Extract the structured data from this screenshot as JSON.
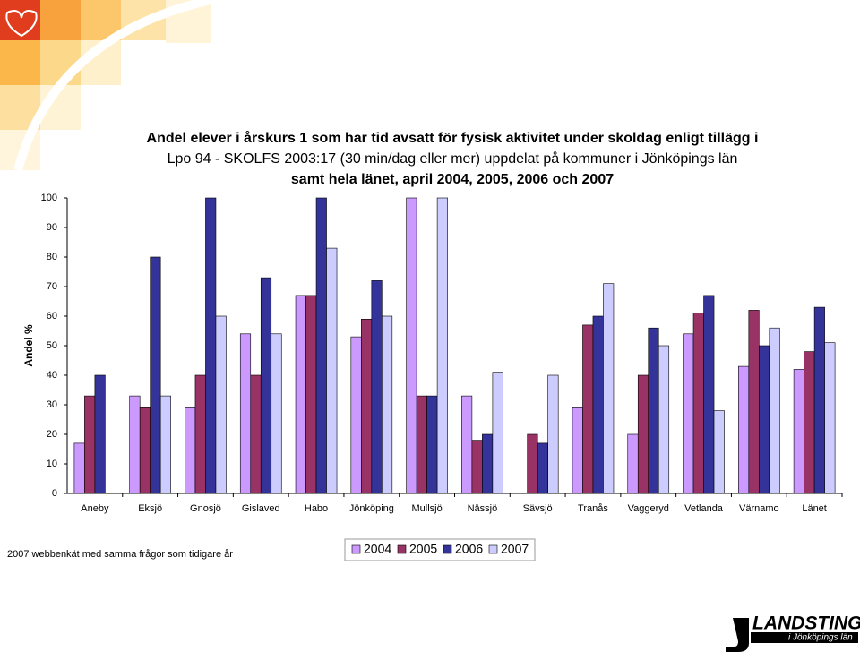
{
  "chart_data": {
    "type": "bar",
    "title": [
      "Andel elever i årskurs 1 som har tid avsatt för fysisk aktivitet under skoldag enligt tillägg i",
      "Lpo 94 - SKOLFS 2003:17  (30 min/dag eller mer)  uppdelat på kommuner i Jönköpings län",
      "samt hela länet, april 2004, 2005, 2006 och 2007"
    ],
    "y_label": "Andel %",
    "categories": [
      "Aneby",
      "Eksjö",
      "Gnosjö",
      "Gislaved",
      "Habo",
      "Jönköping",
      "Mullsjö",
      "Nässjö",
      "Sävsjö",
      "Tranås",
      "Vaggeryd",
      "Vetlanda",
      "Värnamo",
      "Länet"
    ],
    "series": [
      {
        "name": "2004",
        "color": "#cc99ff",
        "values": [
          17,
          33,
          29,
          54,
          67,
          53,
          100,
          33,
          null,
          29,
          20,
          54,
          43,
          42
        ]
      },
      {
        "name": "2005",
        "color": "#993366",
        "values": [
          33,
          29,
          40,
          40,
          67,
          59,
          33,
          18,
          20,
          57,
          40,
          61,
          62,
          48
        ]
      },
      {
        "name": "2006",
        "color": "#333399",
        "values": [
          40,
          80,
          100,
          73,
          100,
          72,
          33,
          20,
          17,
          60,
          56,
          67,
          50,
          63
        ]
      },
      {
        "name": "2007",
        "color": "#ccccff",
        "values": [
          null,
          33,
          60,
          54,
          83,
          60,
          100,
          41,
          40,
          71,
          50,
          28,
          56,
          51
        ]
      }
    ],
    "ylim": [
      0,
      100
    ],
    "yticks": [
      0,
      10,
      20,
      30,
      40,
      50,
      60,
      70,
      80,
      90,
      100
    ],
    "grid": false,
    "footnote": "2007 webbenkät med samma frågor som tidigare år",
    "logo": {
      "name": "LANDSTINGET",
      "sub": "i Jönköpings län"
    }
  }
}
